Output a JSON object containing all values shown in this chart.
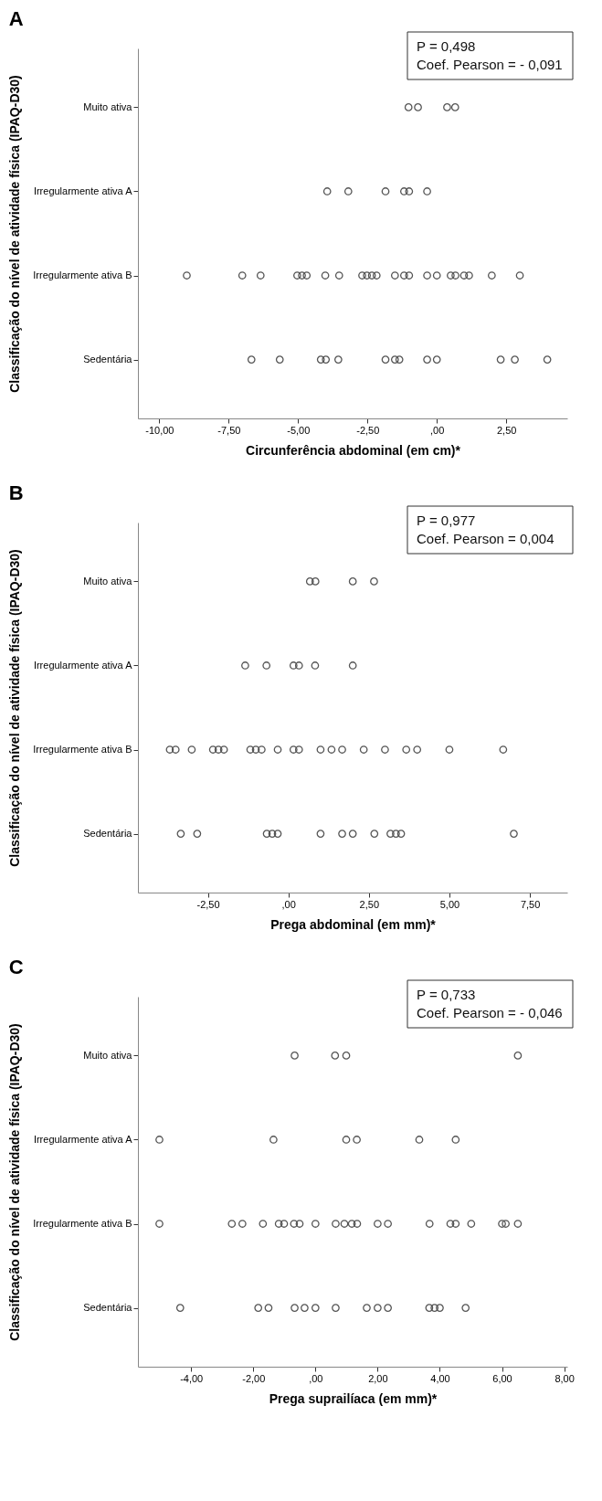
{
  "chart_data": [
    {
      "type": "scatter",
      "title": "A",
      "orientation": "horizontal",
      "xlabel": "Circunferência abdominal (em cm)*",
      "ylabel": "Classificação do nível de atividade física (IPAQ-D30)",
      "categories": [
        "Muito ativa",
        "Irregularmente ativa A",
        "Irregularmente ativa B",
        "Sedentária"
      ],
      "xlim": [
        -10.77,
        4.7
      ],
      "xticks": [
        {
          "value": -10,
          "label": "-10,00"
        },
        {
          "value": -7.5,
          "label": "-7,50"
        },
        {
          "value": -5,
          "label": "-5,00"
        },
        {
          "value": -2.5,
          "label": "-2,50"
        },
        {
          "value": 0,
          "label": ",00"
        },
        {
          "value": 2.5,
          "label": "2,50"
        }
      ],
      "grid": false,
      "marker": "circle",
      "annotations": [
        "P = 0,498",
        "Coef. Pearson = - 0,091"
      ],
      "series": [
        {
          "color": "#555555",
          "x": [
            "Muito ativa",
            "Muito ativa",
            "Muito ativa",
            "Muito ativa",
            "Irregularmente ativa A",
            "Irregularmente ativa A",
            "Irregularmente ativa A",
            "Irregularmente ativa A",
            "Irregularmente ativa A",
            "Irregularmente ativa A",
            "Irregularmente ativa B",
            "Irregularmente ativa B",
            "Irregularmente ativa B",
            "Irregularmente ativa B",
            "Irregularmente ativa B",
            "Irregularmente ativa B",
            "Irregularmente ativa B",
            "Irregularmente ativa B",
            "Irregularmente ativa B",
            "Irregularmente ativa B",
            "Irregularmente ativa B",
            "Irregularmente ativa B",
            "Irregularmente ativa B",
            "Irregularmente ativa B",
            "Irregularmente ativa B",
            "Irregularmente ativa B",
            "Irregularmente ativa B",
            "Irregularmente ativa B",
            "Irregularmente ativa B",
            "Irregularmente ativa B",
            "Irregularmente ativa B",
            "Irregularmente ativa B",
            "Irregularmente ativa B",
            "Sedentária",
            "Sedentária",
            "Sedentária",
            "Sedentária",
            "Sedentária",
            "Sedentária",
            "Sedentária",
            "Sedentária",
            "Sedentária",
            "Sedentária",
            "Sedentária",
            "Sedentária",
            "Sedentária"
          ],
          "values": [
            -1.02,
            -0.68,
            0.37,
            0.66,
            -3.95,
            -3.19,
            -1.85,
            -1.18,
            -1.0,
            -0.35,
            -9.01,
            -7.01,
            -6.35,
            -5.03,
            -4.86,
            -4.69,
            -4.02,
            -3.52,
            -2.69,
            -2.52,
            -2.34,
            -2.17,
            -1.51,
            -1.18,
            -1.0,
            -0.35,
            0,
            0.5,
            0.67,
            0.98,
            1.16,
            1.98,
            2.99,
            -6.68,
            -5.66,
            -4.18,
            -4.0,
            -3.55,
            -1.85,
            -1.51,
            -1.35,
            -0.35,
            0,
            2.3,
            2.81,
            3.98
          ]
        }
      ]
    },
    {
      "type": "scatter",
      "title": "B",
      "orientation": "horizontal",
      "xlabel": "Prega abdominal (em mm)*",
      "ylabel": "Classificação do nível de atividade física (IPAQ-D30)",
      "categories": [
        "Muito ativa",
        "Irregularmente ativa A",
        "Irregularmente ativa B",
        "Sedentária"
      ],
      "xlim": [
        -4.67,
        8.66
      ],
      "xticks": [
        {
          "value": -2.5,
          "label": "-2,50"
        },
        {
          "value": 0,
          "label": ",00"
        },
        {
          "value": 2.5,
          "label": "2,50"
        },
        {
          "value": 5,
          "label": "5,00"
        },
        {
          "value": 7.5,
          "label": "7,50"
        }
      ],
      "grid": false,
      "marker": "circle",
      "annotations": [
        "P = 0,977",
        "Coef. Pearson = 0,004"
      ],
      "series": [
        {
          "color": "#555555",
          "x": [
            "Muito ativa",
            "Muito ativa",
            "Muito ativa",
            "Muito ativa",
            "Irregularmente ativa A",
            "Irregularmente ativa A",
            "Irregularmente ativa A",
            "Irregularmente ativa A",
            "Irregularmente ativa A",
            "Irregularmente ativa A",
            "Irregularmente ativa B",
            "Irregularmente ativa B",
            "Irregularmente ativa B",
            "Irregularmente ativa B",
            "Irregularmente ativa B",
            "Irregularmente ativa B",
            "Irregularmente ativa B",
            "Irregularmente ativa B",
            "Irregularmente ativa B",
            "Irregularmente ativa B",
            "Irregularmente ativa B",
            "Irregularmente ativa B",
            "Irregularmente ativa B",
            "Irregularmente ativa B",
            "Irregularmente ativa B",
            "Irregularmente ativa B",
            "Irregularmente ativa B",
            "Irregularmente ativa B",
            "Irregularmente ativa B",
            "Irregularmente ativa B",
            "Irregularmente ativa B",
            "Sedentária",
            "Sedentária",
            "Sedentária",
            "Sedentária",
            "Sedentária",
            "Sedentária",
            "Sedentária",
            "Sedentária",
            "Sedentária",
            "Sedentária",
            "Sedentária",
            "Sedentária",
            "Sedentária"
          ],
          "values": [
            0.67,
            0.84,
            2.0,
            2.66,
            -1.34,
            -0.68,
            0.16,
            0.33,
            0.83,
            2.0,
            -3.68,
            -3.5,
            -3.0,
            -2.34,
            -2.17,
            -2.0,
            -1.18,
            -1.01,
            -0.83,
            -0.33,
            0.16,
            0.33,
            1.0,
            1.34,
            1.67,
            2.34,
            3.0,
            3.66,
            4.0,
            5.0,
            6.67,
            -3.34,
            -2.83,
            -0.67,
            -0.5,
            -0.33,
            1.0,
            1.67,
            2.0,
            2.67,
            3.17,
            3.34,
            3.5,
            7.0
          ]
        }
      ]
    },
    {
      "type": "scatter",
      "title": "C",
      "orientation": "horizontal",
      "xlabel": "Prega suprailíaca (em mm)*",
      "ylabel": "Classificação do nível de atividade física (IPAQ-D30)",
      "categories": [
        "Muito ativa",
        "Irregularmente ativa A",
        "Irregularmente ativa B",
        "Sedentária"
      ],
      "xlim": [
        -5.71,
        8.1
      ],
      "xticks": [
        {
          "value": -4,
          "label": "-4,00"
        },
        {
          "value": -2,
          "label": "-2,00"
        },
        {
          "value": 0,
          "label": ",00"
        },
        {
          "value": 2,
          "label": "2,00"
        },
        {
          "value": 4,
          "label": "4,00"
        },
        {
          "value": 6,
          "label": "6,00"
        },
        {
          "value": 8,
          "label": "8,00"
        }
      ],
      "grid": false,
      "marker": "circle",
      "annotations": [
        "P = 0,733",
        "Coef. Pearson = - 0,046"
      ],
      "series": [
        {
          "color": "#555555",
          "x": [
            "Muito ativa",
            "Muito ativa",
            "Muito ativa",
            "Muito ativa",
            "Irregularmente ativa A",
            "Irregularmente ativa A",
            "Irregularmente ativa A",
            "Irregularmente ativa A",
            "Irregularmente ativa A",
            "Irregularmente ativa A",
            "Irregularmente ativa B",
            "Irregularmente ativa B",
            "Irregularmente ativa B",
            "Irregularmente ativa B",
            "Irregularmente ativa B",
            "Irregularmente ativa B",
            "Irregularmente ativa B",
            "Irregularmente ativa B",
            "Irregularmente ativa B",
            "Irregularmente ativa B",
            "Irregularmente ativa B",
            "Irregularmente ativa B",
            "Irregularmente ativa B",
            "Irregularmente ativa B",
            "Irregularmente ativa B",
            "Irregularmente ativa B",
            "Irregularmente ativa B",
            "Irregularmente ativa B",
            "Irregularmente ativa B",
            "Irregularmente ativa B",
            "Irregularmente ativa B",
            "Irregularmente ativa B",
            "Sedentária",
            "Sedentária",
            "Sedentária",
            "Sedentária",
            "Sedentária",
            "Sedentária",
            "Sedentária",
            "Sedentária",
            "Sedentária",
            "Sedentária",
            "Sedentária",
            "Sedentária",
            "Sedentária",
            "Sedentária"
          ],
          "values": [
            -0.67,
            0.63,
            0.99,
            6.51,
            -5.02,
            -1.35,
            0.99,
            1.33,
            3.34,
            4.51,
            -5.02,
            -2.69,
            -2.35,
            -1.69,
            -1.18,
            -1.01,
            -0.69,
            -0.51,
            0,
            0.65,
            0.93,
            1.17,
            1.34,
            2.0,
            2.33,
            3.67,
            4.34,
            4.51,
            5.01,
            6.0,
            6.12,
            6.51,
            -4.35,
            -1.84,
            -1.51,
            -0.67,
            -0.35,
            0,
            0.65,
            1.65,
            2.0,
            2.33,
            3.66,
            3.83,
            4.0,
            4.83
          ]
        }
      ]
    }
  ]
}
